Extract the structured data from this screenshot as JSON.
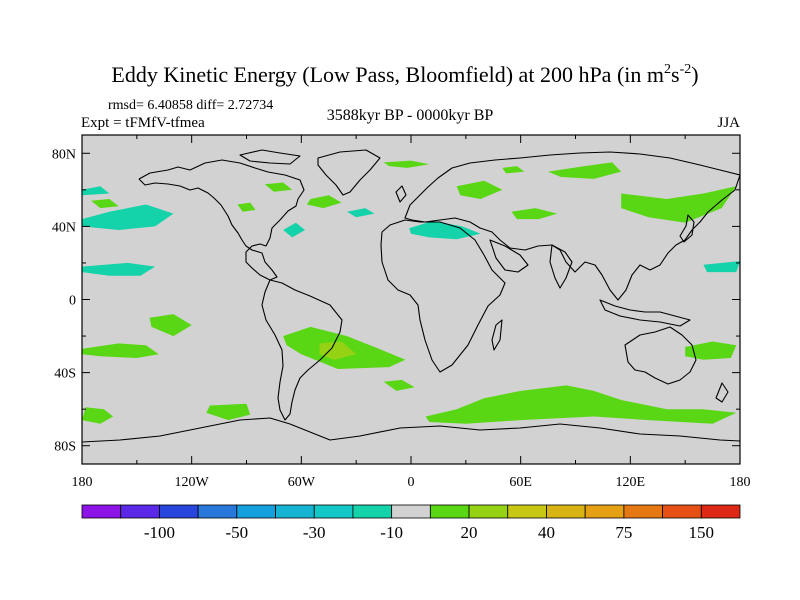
{
  "chart_data": {
    "type": "heatmap",
    "title": "Eddy Kinetic Energy (Low Pass, Bloomfield) at 200 hPa (in m",
    "title_units_sup1": "2",
    "title_units_mid": "s",
    "title_units_sup2": "-2",
    "title_units_close": ")",
    "stats_text": "rmsd= 6.40858 diff= 2.72734",
    "experiment_text": "Expt = tFMfV-tfmea",
    "period_text": "3588kyr BP - 0000kyr BP",
    "season": "JJA",
    "xlim": [
      -180,
      180
    ],
    "ylim": [
      -90,
      90
    ],
    "x_ticks": [
      {
        "value": -180,
        "label": "180"
      },
      {
        "value": -120,
        "label": "120W"
      },
      {
        "value": -60,
        "label": "60W"
      },
      {
        "value": 0,
        "label": "0"
      },
      {
        "value": 60,
        "label": "60E"
      },
      {
        "value": 120,
        "label": "120E"
      },
      {
        "value": 180,
        "label": "180"
      }
    ],
    "y_ticks": [
      {
        "value": 80,
        "label": "80N"
      },
      {
        "value": 40,
        "label": "40N"
      },
      {
        "value": 0,
        "label": "0"
      },
      {
        "value": -40,
        "label": "40S"
      },
      {
        "value": -80,
        "label": "80S"
      }
    ],
    "background_color": "#d2d2d2",
    "colorbar": {
      "colors": [
        "#8c14e6",
        "#5a28e6",
        "#2846dc",
        "#2878dc",
        "#14a0dc",
        "#14b4d2",
        "#14c8c8",
        "#14d2aa",
        "#d2d2d2",
        "#5ad714",
        "#96d214",
        "#c8c814",
        "#d7b414",
        "#e6a014",
        "#e67814",
        "#e65014",
        "#dc2814"
      ],
      "labels": [
        {
          "label": "-100",
          "after_box": 1
        },
        {
          "label": "-50",
          "after_box": 3
        },
        {
          "label": "-30",
          "after_box": 5
        },
        {
          "label": "-10",
          "after_box": 7
        },
        {
          "label": "20",
          "after_box": 9
        },
        {
          "label": "40",
          "after_box": 11
        },
        {
          "label": "75",
          "after_box": 13
        },
        {
          "label": "150",
          "after_box": 15
        }
      ]
    },
    "regions": [
      {
        "name": "positive-anomaly-south-atlantic",
        "level": "10 to 20",
        "color": "#5ad714",
        "points": [
          [
            -70,
            -20
          ],
          [
            -55,
            -15
          ],
          [
            -35,
            -20
          ],
          [
            -15,
            -28
          ],
          [
            -3,
            -33
          ],
          [
            -12,
            -37
          ],
          [
            -40,
            -38
          ],
          [
            -60,
            -30
          ],
          [
            -68,
            -25
          ]
        ]
      },
      {
        "name": "positive-anomaly-south-atlantic-core",
        "level": "20 to 30",
        "color": "#96d214",
        "points": [
          [
            -50,
            -24
          ],
          [
            -38,
            -23
          ],
          [
            -30,
            -30
          ],
          [
            -42,
            -33
          ],
          [
            -50,
            -30
          ]
        ]
      },
      {
        "name": "positive-anomaly-southern-ocean",
        "level": "10 to 20",
        "color": "#5ad714",
        "points": [
          [
            8,
            -64
          ],
          [
            25,
            -60
          ],
          [
            40,
            -54
          ],
          [
            60,
            -50
          ],
          [
            85,
            -47
          ],
          [
            100,
            -50
          ],
          [
            115,
            -55
          ],
          [
            140,
            -60
          ],
          [
            160,
            -60
          ],
          [
            178,
            -62
          ],
          [
            165,
            -68
          ],
          [
            130,
            -66
          ],
          [
            100,
            -64
          ],
          [
            60,
            -66
          ],
          [
            30,
            -68
          ],
          [
            10,
            -67
          ]
        ]
      },
      {
        "name": "positive-anomaly-west-pacific-south",
        "level": "10 to 20",
        "color": "#5ad714",
        "points": [
          [
            -178,
            -59
          ],
          [
            -168,
            -60
          ],
          [
            -163,
            -64
          ],
          [
            -170,
            -68
          ],
          [
            -180,
            -66
          ]
        ]
      },
      {
        "name": "positive-anomaly-south-pacific",
        "level": "10 to 20",
        "color": "#5ad714",
        "points": [
          [
            -180,
            -27
          ],
          [
            -160,
            -24
          ],
          [
            -145,
            -25
          ],
          [
            -138,
            -30
          ],
          [
            -150,
            -32
          ],
          [
            -170,
            -31
          ],
          [
            -180,
            -30
          ]
        ]
      },
      {
        "name": "positive-anomaly-south-pacific-east",
        "level": "10 to 20",
        "color": "#5ad714",
        "points": [
          [
            -143,
            -10
          ],
          [
            -130,
            -8
          ],
          [
            -120,
            -14
          ],
          [
            -130,
            -20
          ],
          [
            -142,
            -15
          ]
        ]
      },
      {
        "name": "positive-anomaly-southern-ocean-east",
        "level": "10 to 20",
        "color": "#5ad714",
        "points": [
          [
            -110,
            -58
          ],
          [
            -90,
            -57
          ],
          [
            -88,
            -63
          ],
          [
            -100,
            -66
          ],
          [
            -112,
            -62
          ]
        ]
      },
      {
        "name": "positive-anomaly-australia-east",
        "level": "10 to 20",
        "color": "#5ad714",
        "points": [
          [
            150,
            -26
          ],
          [
            165,
            -23
          ],
          [
            178,
            -25
          ],
          [
            175,
            -32
          ],
          [
            160,
            -33
          ],
          [
            150,
            -31
          ]
        ]
      },
      {
        "name": "positive-anomaly-north-pacific-east",
        "level": "10 to 20",
        "color": "#5ad714",
        "points": [
          [
            115,
            58
          ],
          [
            140,
            55
          ],
          [
            160,
            58
          ],
          [
            178,
            62
          ],
          [
            170,
            50
          ],
          [
            150,
            42
          ],
          [
            130,
            45
          ],
          [
            115,
            50
          ]
        ]
      },
      {
        "name": "positive-anomaly-siberia",
        "level": "10 to 20",
        "color": "#5ad714",
        "points": [
          [
            75,
            70
          ],
          [
            95,
            73
          ],
          [
            110,
            75
          ],
          [
            115,
            70
          ],
          [
            100,
            66
          ],
          [
            82,
            67
          ]
        ]
      },
      {
        "name": "positive-anomaly-europe-north",
        "level": "10 to 20",
        "color": "#5ad714",
        "points": [
          [
            25,
            62
          ],
          [
            40,
            65
          ],
          [
            50,
            60
          ],
          [
            38,
            55
          ],
          [
            27,
            57
          ]
        ]
      },
      {
        "name": "positive-anomaly-russia",
        "level": "10 to 20",
        "color": "#5ad714",
        "points": [
          [
            55,
            48
          ],
          [
            68,
            50
          ],
          [
            80,
            47
          ],
          [
            70,
            44
          ],
          [
            58,
            44
          ]
        ]
      },
      {
        "name": "positive-anomaly-arctic-atlantic",
        "level": "10 to 20",
        "color": "#5ad714",
        "points": [
          [
            -15,
            75
          ],
          [
            0,
            76
          ],
          [
            10,
            74
          ],
          [
            -2,
            72
          ],
          [
            -12,
            73
          ]
        ]
      },
      {
        "name": "positive-anomaly-arctic-siberia",
        "level": "10 to 20",
        "color": "#5ad714",
        "points": [
          [
            50,
            72
          ],
          [
            58,
            73
          ],
          [
            62,
            70
          ],
          [
            52,
            69
          ]
        ]
      },
      {
        "name": "positive-anomaly-north-atlantic",
        "level": "10 to 20",
        "color": "#5ad714",
        "points": [
          [
            -55,
            55
          ],
          [
            -45,
            57
          ],
          [
            -38,
            53
          ],
          [
            -48,
            50
          ],
          [
            -57,
            52
          ]
        ]
      },
      {
        "name": "positive-anomaly-canada",
        "level": "10 to 20",
        "color": "#5ad714",
        "points": [
          [
            -80,
            63
          ],
          [
            -70,
            64
          ],
          [
            -65,
            60
          ],
          [
            -75,
            59
          ]
        ]
      },
      {
        "name": "positive-anomaly-hudson",
        "level": "10 to 20",
        "color": "#5ad714",
        "points": [
          [
            -95,
            52
          ],
          [
            -88,
            53
          ],
          [
            -85,
            49
          ],
          [
            -92,
            48
          ]
        ]
      },
      {
        "name": "positive-anomaly-pacific-nw",
        "level": "10 to 20",
        "color": "#5ad714",
        "points": [
          [
            -175,
            54
          ],
          [
            -165,
            55
          ],
          [
            -160,
            51
          ],
          [
            -170,
            50
          ]
        ]
      },
      {
        "name": "positive-anomaly-southern-tip",
        "level": "10 to 20",
        "color": "#5ad714",
        "points": [
          [
            -15,
            -45
          ],
          [
            -5,
            -44
          ],
          [
            2,
            -48
          ],
          [
            -8,
            -50
          ]
        ]
      },
      {
        "name": "negative-anomaly-north-pacific",
        "level": "-20 to -10",
        "color": "#14d2aa",
        "points": [
          [
            -180,
            44
          ],
          [
            -165,
            48
          ],
          [
            -145,
            52
          ],
          [
            -130,
            47
          ],
          [
            -140,
            40
          ],
          [
            -160,
            38
          ],
          [
            -180,
            40
          ]
        ]
      },
      {
        "name": "negative-anomaly-pacific-south",
        "level": "-20 to -10",
        "color": "#14d2aa",
        "points": [
          [
            -180,
            18
          ],
          [
            -155,
            20
          ],
          [
            -140,
            18
          ],
          [
            -148,
            13
          ],
          [
            -165,
            13
          ],
          [
            -180,
            15
          ]
        ]
      },
      {
        "name": "negative-anomaly-atlantic",
        "level": "-20 to -10",
        "color": "#14d2aa",
        "points": [
          [
            -70,
            38
          ],
          [
            -63,
            42
          ],
          [
            -58,
            38
          ],
          [
            -65,
            34
          ]
        ]
      },
      {
        "name": "negative-anomaly-mediterranean",
        "level": "-20 to -10",
        "color": "#14d2aa",
        "points": [
          [
            -1,
            39
          ],
          [
            12,
            43
          ],
          [
            28,
            40
          ],
          [
            38,
            36
          ],
          [
            25,
            33
          ],
          [
            10,
            34
          ],
          [
            0,
            36
          ]
        ]
      },
      {
        "name": "negative-anomaly-north-atlantic-mid",
        "level": "-20 to -10",
        "color": "#14d2aa",
        "points": [
          [
            -35,
            48
          ],
          [
            -25,
            50
          ],
          [
            -20,
            47
          ],
          [
            -30,
            45
          ]
        ]
      },
      {
        "name": "negative-anomaly-west-pacific-east",
        "level": "-20 to -10",
        "color": "#14d2aa",
        "points": [
          [
            160,
            19
          ],
          [
            180,
            21
          ],
          [
            178,
            15
          ],
          [
            162,
            15
          ]
        ]
      },
      {
        "name": "negative-anomaly-arctic-pacific",
        "level": "-20 to -10",
        "color": "#14d2aa",
        "points": [
          [
            -180,
            60
          ],
          [
            -170,
            62
          ],
          [
            -165,
            58
          ],
          [
            -180,
            57
          ]
        ]
      }
    ]
  }
}
